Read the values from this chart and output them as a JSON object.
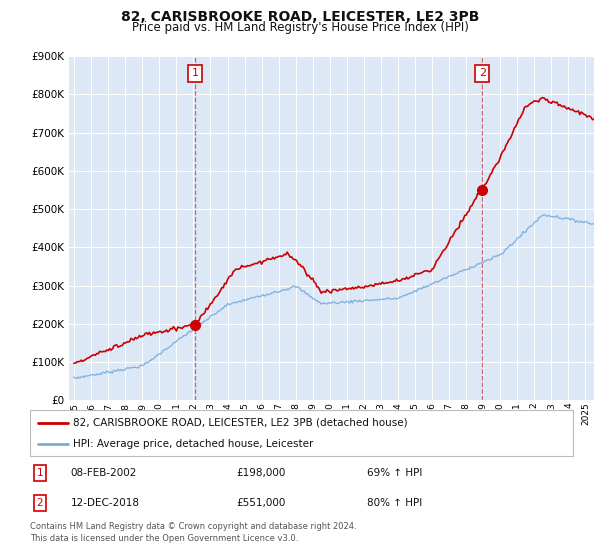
{
  "title": "82, CARISBROOKE ROAD, LEICESTER, LE2 3PB",
  "subtitle": "Price paid vs. HM Land Registry's House Price Index (HPI)",
  "background_color": "#ffffff",
  "plot_background": "#dce8f5",
  "grid_color": "#ffffff",
  "sale1": {
    "date_num": 2002.1,
    "price": 198000,
    "label": "1",
    "date_str": "08-FEB-2002",
    "pct": "69% ↑ HPI"
  },
  "sale2": {
    "date_num": 2018.95,
    "price": 551000,
    "label": "2",
    "date_str": "12-DEC-2018",
    "pct": "80% ↑ HPI"
  },
  "ylim": [
    0,
    900000
  ],
  "xlim": [
    1994.7,
    2025.5
  ],
  "legend_line1": "82, CARISBROOKE ROAD, LEICESTER, LE2 3PB (detached house)",
  "legend_line2": "HPI: Average price, detached house, Leicester",
  "footnote": "Contains HM Land Registry data © Crown copyright and database right 2024.\nThis data is licensed under the Open Government Licence v3.0.",
  "red_color": "#cc0000",
  "blue_color": "#7aacdc",
  "title_fontsize": 10,
  "subtitle_fontsize": 8.5
}
